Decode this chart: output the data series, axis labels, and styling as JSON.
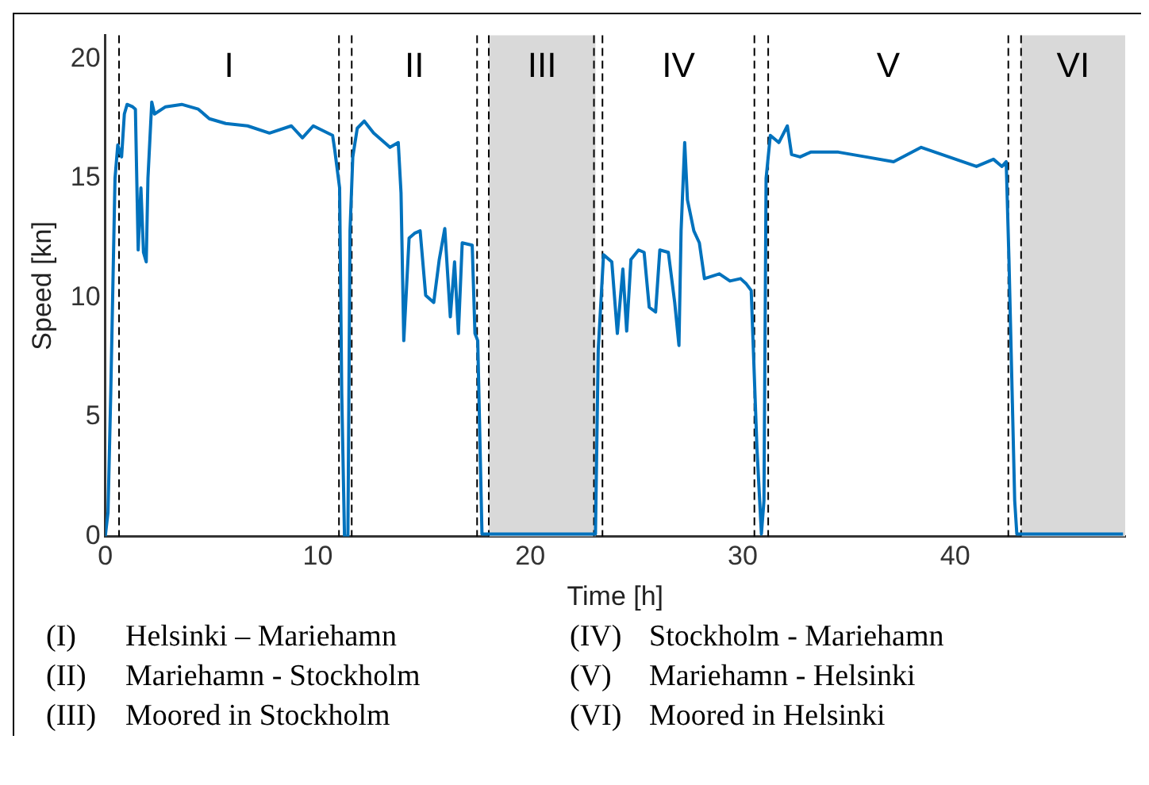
{
  "chart_data": {
    "type": "line",
    "xlabel": "Time [h]",
    "ylabel": "Speed [kn]",
    "xlim": [
      0,
      48
    ],
    "ylim": [
      0,
      21
    ],
    "xticks": [
      0,
      10,
      20,
      30,
      40
    ],
    "yticks": [
      0,
      5,
      10,
      15,
      20
    ],
    "grid": false,
    "legend": false,
    "marker": "none",
    "line_style": "solid",
    "series": [
      {
        "color": "#0072bd",
        "x": [
          0,
          0.13,
          0.26,
          0.46,
          0.59,
          0.77,
          0.9,
          1.03,
          1.29,
          1.42,
          1.55,
          1.68,
          1.8,
          1.93,
          2.01,
          2.19,
          2.32,
          2.84,
          3.6,
          4.38,
          4.9,
          5.67,
          6.7,
          7.73,
          8.76,
          9.28,
          9.79,
          10.7,
          10.8,
          11.03,
          11.13,
          11.26,
          11.42,
          11.52,
          11.65,
          11.86,
          12.19,
          12.63,
          13.4,
          13.79,
          13.92,
          14.05,
          14.3,
          14.56,
          14.82,
          15.08,
          15.46,
          15.72,
          15.98,
          16.24,
          16.44,
          16.62,
          16.8,
          17.27,
          17.4,
          17.53,
          17.73,
          18.3,
          23.07,
          23.2,
          23.45,
          23.84,
          24.1,
          24.36,
          24.54,
          24.74,
          25.1,
          25.36,
          25.6,
          25.9,
          26.1,
          26.5,
          26.8,
          27.0,
          27.1,
          27.27,
          27.4,
          27.7,
          27.96,
          28.2,
          28.9,
          29.4,
          29.9,
          30.15,
          30.4,
          30.67,
          30.88,
          31.0,
          31.1,
          31.3,
          31.7,
          32.1,
          32.3,
          32.7,
          33.2,
          34.5,
          35.8,
          37.1,
          38.4,
          39.7,
          41.0,
          41.8,
          42.2,
          42.4,
          42.53,
          42.8,
          42.9,
          44.8,
          47.9
        ],
        "values": [
          0,
          1.0,
          6.0,
          15.0,
          16.4,
          15.9,
          17.7,
          18.1,
          18.0,
          17.9,
          12.0,
          14.6,
          11.9,
          11.5,
          15.0,
          18.2,
          17.7,
          18.0,
          18.1,
          17.9,
          17.5,
          17.3,
          17.2,
          16.9,
          17.2,
          16.7,
          17.2,
          16.8,
          16.2,
          14.6,
          6.0,
          0,
          0,
          12.8,
          15.9,
          17.1,
          17.4,
          16.9,
          16.3,
          16.5,
          14.4,
          8.2,
          12.5,
          12.7,
          12.8,
          10.1,
          9.8,
          11.6,
          12.9,
          9.2,
          11.5,
          8.5,
          12.3,
          12.2,
          8.5,
          8.2,
          0.1,
          0.1,
          0.1,
          7.8,
          11.8,
          11.5,
          8.5,
          11.2,
          8.6,
          11.6,
          12.0,
          11.9,
          9.6,
          9.4,
          12.0,
          11.9,
          9.8,
          8.0,
          12.8,
          16.5,
          14.1,
          12.8,
          12.3,
          10.8,
          11.0,
          10.7,
          10.8,
          10.6,
          10.3,
          3.7,
          0.1,
          1.5,
          15.0,
          16.8,
          16.5,
          17.2,
          16.0,
          15.9,
          16.1,
          16.1,
          15.9,
          15.7,
          16.3,
          15.9,
          15.5,
          15.8,
          15.5,
          15.7,
          11.6,
          1.5,
          0.1,
          0.1,
          0.1
        ]
      }
    ],
    "bands": [
      {
        "axis": "x",
        "from": 18.05,
        "to": 23.07,
        "label": "III",
        "color": "#d9d9d9"
      },
      {
        "axis": "x",
        "from": 43.1,
        "to": 48,
        "label": "VI",
        "color": "#d9d9d9"
      }
    ],
    "ref_lines": [
      {
        "axis": "x",
        "value": 0.65,
        "line_style": "dashed",
        "color": "#000000"
      },
      {
        "axis": "x",
        "value": 11.0,
        "line_style": "dashed",
        "color": "#000000"
      },
      {
        "axis": "x",
        "value": 11.6,
        "line_style": "dashed",
        "color": "#000000"
      },
      {
        "axis": "x",
        "value": 17.5,
        "line_style": "dashed",
        "color": "#000000"
      },
      {
        "axis": "x",
        "value": 18.05,
        "line_style": "dashed",
        "color": "#000000"
      },
      {
        "axis": "x",
        "value": 23.0,
        "line_style": "dashed",
        "color": "#000000"
      },
      {
        "axis": "x",
        "value": 23.4,
        "line_style": "dashed",
        "color": "#000000"
      },
      {
        "axis": "x",
        "value": 30.55,
        "line_style": "dashed",
        "color": "#000000"
      },
      {
        "axis": "x",
        "value": 31.2,
        "line_style": "dashed",
        "color": "#000000"
      },
      {
        "axis": "x",
        "value": 42.5,
        "line_style": "dashed",
        "color": "#000000"
      },
      {
        "axis": "x",
        "value": 43.1,
        "line_style": "dashed",
        "color": "#000000"
      }
    ],
    "annotations": [
      "I",
      "II",
      "IV",
      "V",
      "(I)\tHelsinki – Mariehamn",
      "(II)\tMariehamn - Stockholm",
      "(III)\tMoored in Stockholm",
      "(IV)\tStockholm - Mariehamn",
      "(V)\tMariehamn - Helsinki",
      "(VI)\tMoored in Helsinki"
    ]
  }
}
